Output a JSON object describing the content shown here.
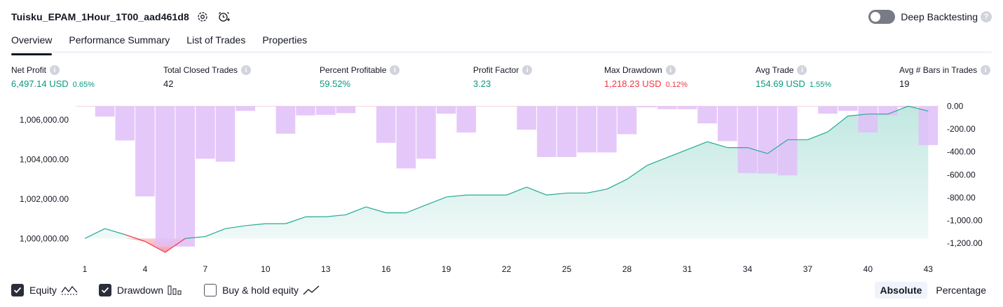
{
  "header": {
    "strategy_name": "Tuisku_EPAM_1Hour_1T00_aad461d8",
    "deep_backtesting_label": "Deep Backtesting",
    "deep_backtesting_on": false
  },
  "tabs": [
    {
      "label": "Overview",
      "active": true
    },
    {
      "label": "Performance Summary",
      "active": false
    },
    {
      "label": "List of Trades",
      "active": false
    },
    {
      "label": "Properties",
      "active": false
    }
  ],
  "metrics": {
    "net_profit": {
      "label": "Net Profit",
      "value": "6,497.14 USD",
      "pct": "0.65%"
    },
    "total_closed_trades": {
      "label": "Total Closed Trades",
      "value": "42"
    },
    "percent_profitable": {
      "label": "Percent Profitable",
      "value": "59.52%"
    },
    "profit_factor": {
      "label": "Profit Factor",
      "value": "3.23"
    },
    "max_drawdown": {
      "label": "Max Drawdown",
      "value": "1,218.23 USD",
      "pct": "0.12%"
    },
    "avg_trade": {
      "label": "Avg Trade",
      "value": "154.69 USD",
      "pct": "1.55%"
    },
    "avg_bars": {
      "label": "Avg # Bars in Trades",
      "value": "19"
    }
  },
  "legend": {
    "equity": {
      "label": "Equity",
      "checked": true
    },
    "drawdown": {
      "label": "Drawdown",
      "checked": true
    },
    "buy_hold": {
      "label": "Buy & hold equity",
      "checked": false
    }
  },
  "scale_buttons": {
    "absolute": "Absolute",
    "percentage": "Percentage",
    "selected": "absolute"
  },
  "colors": {
    "equity_line": "#22ab94",
    "equity_fill": "#22ab94",
    "equity_negative": "#f23645",
    "drawdown_bar": "#e1bef9",
    "positive": "#089981",
    "negative": "#f23645"
  },
  "chart_data": {
    "type": "area",
    "x_ticks": [
      "1",
      "4",
      "7",
      "10",
      "13",
      "16",
      "19",
      "22",
      "25",
      "28",
      "31",
      "34",
      "37",
      "40",
      "43"
    ],
    "left_axis_ticks": [
      "1,006,000.00",
      "1,004,000.00",
      "1,002,000.00",
      "1,000,000.00"
    ],
    "right_axis_ticks": [
      "0.00",
      "-200.00",
      "-400.00",
      "-600.00",
      "-800.00",
      "-1,000.00",
      "-1,200.00"
    ],
    "ylim_left": [
      999300,
      1006750
    ],
    "ylim_right": [
      -1280,
      10
    ],
    "series": [
      {
        "name": "Equity",
        "x": [
          1,
          2,
          3,
          4,
          5,
          6,
          7,
          8,
          9,
          10,
          11,
          12,
          13,
          14,
          15,
          16,
          17,
          18,
          19,
          20,
          21,
          22,
          23,
          24,
          25,
          26,
          27,
          28,
          29,
          30,
          31,
          32,
          33,
          34,
          35,
          36,
          37,
          38,
          39,
          40,
          41,
          42,
          43
        ],
        "values": [
          1000000,
          1000500,
          1000200,
          999850,
          999300,
          1000000,
          1000100,
          1000500,
          1000650,
          1000750,
          1000750,
          1001100,
          1001100,
          1001200,
          1001600,
          1001300,
          1001300,
          1001700,
          1002100,
          1002200,
          1002200,
          1002200,
          1002600,
          1002200,
          1002300,
          1002300,
          1002500,
          1003000,
          1003700,
          1004100,
          1004500,
          1004900,
          1004600,
          1004600,
          1004300,
          1005000,
          1005000,
          1005400,
          1006200,
          1006300,
          1006300,
          1006700,
          1006450
        ]
      },
      {
        "name": "Drawdown",
        "x": [
          1,
          2,
          3,
          4,
          5,
          6,
          7,
          8,
          9,
          10,
          11,
          12,
          13,
          14,
          15,
          16,
          17,
          18,
          19,
          20,
          21,
          22,
          23,
          24,
          25,
          26,
          27,
          28,
          29,
          30,
          31,
          32,
          33,
          34,
          35,
          36,
          37,
          38,
          39,
          40,
          41,
          42,
          43
        ],
        "values": [
          0,
          -90,
          -300,
          -790,
          -1230,
          -1230,
          -460,
          -485,
          -40,
          0,
          -240,
          -80,
          -75,
          -60,
          0,
          -320,
          -545,
          -460,
          -65,
          -230,
          0,
          0,
          -205,
          -445,
          -445,
          -405,
          -405,
          -245,
          -10,
          -25,
          -25,
          -150,
          -305,
          -585,
          -590,
          -605,
          0,
          -65,
          -40,
          -230,
          -80,
          -10,
          -340
        ]
      }
    ]
  }
}
